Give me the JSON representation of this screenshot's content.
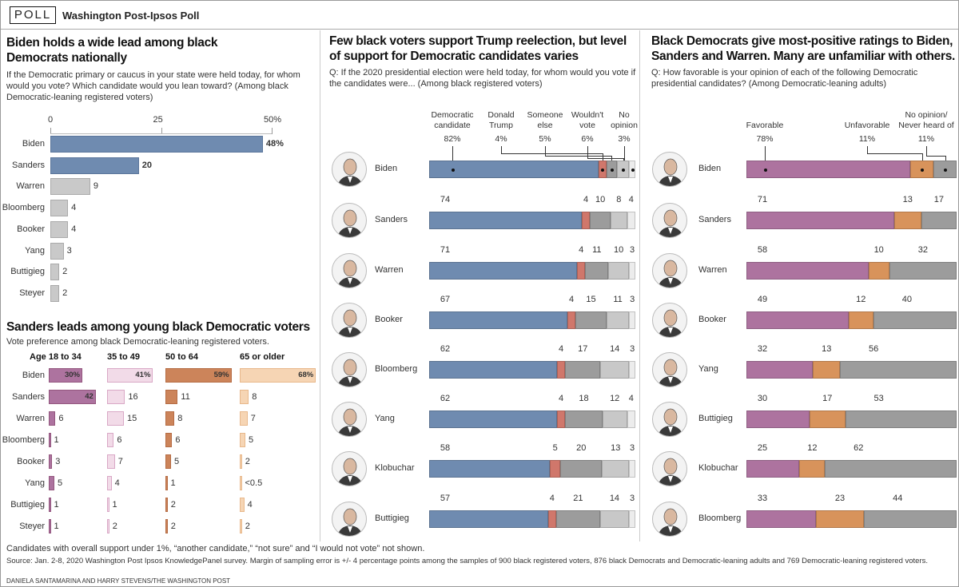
{
  "header": {
    "badge": "POLL",
    "title": "Washington Post-Ipsos Poll"
  },
  "panel1": {
    "title": "Biden holds a wide lead among black Democrats nationally",
    "question": "If the Democratic primary or caucus in your state were held today, for whom would you vote? Which candidate would you lean toward? (Among black Democratic-leaning registered voters)"
  },
  "panel2": {
    "title": "Sanders leads among young black Democratic voters",
    "subtitle": "Vote preference among black Democratic-leaning registered voters."
  },
  "panel3": {
    "title": "Few black voters support Trump reelection, but level of support for Democratic candidates varies",
    "question": "Q: If the 2020 presidential election were held today, for whom would you vote if the candidates were... (Among black registered voters)"
  },
  "panel4": {
    "title": "Black Democrats give most-positive ratings to Biden, Sanders and Warren. Many are unfamiliar with others.",
    "question": "Q: How favorable is your opinion of each of the following Democratic presidential candidates? (Among Democratic-leaning adults)"
  },
  "colors": {
    "blue": "#6f8bb0",
    "gray_bar": "#c9c9c9",
    "red": "#d0776b",
    "dark_gray": "#9c9c9c",
    "light_gray": "#c8c8c8",
    "lightest_gray": "#ececec",
    "purple": "#ad739f",
    "orange": "#d8935b",
    "age": [
      "#ad739f",
      "#f2dbe8",
      "#cc845a",
      "#f6d5b4"
    ],
    "age_border": [
      "#94577f",
      "#d9a8c6",
      "#b56c44",
      "#e8b88b"
    ]
  },
  "chart_data": [
    {
      "type": "bar",
      "orientation": "horizontal",
      "categories": [
        "Biden",
        "Sanders",
        "Warren",
        "Bloomberg",
        "Booker",
        "Yang",
        "Buttigieg",
        "Steyer"
      ],
      "values": [
        48,
        20,
        9,
        4,
        4,
        3,
        2,
        2
      ],
      "labels": [
        "48%",
        "20",
        "9",
        "4",
        "4",
        "3",
        "2",
        "2"
      ],
      "xlim": [
        0,
        50
      ],
      "ticks": [
        "0",
        "25",
        "50%"
      ],
      "tick_values": [
        0,
        25,
        50
      ],
      "grid": false
    },
    {
      "type": "bar",
      "orientation": "horizontal",
      "categories": [
        "Biden",
        "Sanders",
        "Warren",
        "Bloomberg",
        "Booker",
        "Yang",
        "Buttigieg",
        "Steyer"
      ],
      "series": [
        {
          "name": "Age 18 to 34",
          "values": [
            30,
            42,
            6,
            1,
            3,
            5,
            1,
            1
          ],
          "labels": [
            "30%",
            "42",
            "6",
            "1",
            "3",
            "5",
            "1",
            "1"
          ]
        },
        {
          "name": "35 to 49",
          "values": [
            41,
            16,
            15,
            6,
            7,
            4,
            1,
            2
          ],
          "labels": [
            "41%",
            "16",
            "15",
            "6",
            "7",
            "4",
            "1",
            "2"
          ]
        },
        {
          "name": "50 to 64",
          "values": [
            59,
            11,
            8,
            6,
            5,
            1,
            2,
            2
          ],
          "labels": [
            "59%",
            "11",
            "8",
            "6",
            "5",
            "1",
            "2",
            "2"
          ]
        },
        {
          "name": "65 or older",
          "values": [
            68,
            8,
            7,
            5,
            2,
            0.3,
            4,
            2
          ],
          "labels": [
            "68%",
            "8",
            "7",
            "5",
            "2",
            "<0.5",
            "4",
            "2"
          ]
        }
      ]
    },
    {
      "type": "bar",
      "stacked": true,
      "orientation": "horizontal",
      "categories": [
        "Biden",
        "Sanders",
        "Warren",
        "Booker",
        "Bloomberg",
        "Yang",
        "Klobuchar",
        "Buttigieg"
      ],
      "legend": [
        {
          "name": "Democratic candidate",
          "lines": [
            "Democratic",
            "candidate"
          ],
          "value": "82%"
        },
        {
          "name": "Donald Trump",
          "lines": [
            "Donald",
            "Trump"
          ],
          "value": "4%"
        },
        {
          "name": "Someone else",
          "lines": [
            "Someone",
            "else"
          ],
          "value": "5%"
        },
        {
          "name": "Wouldn't vote",
          "lines": [
            "Wouldn't",
            "vote"
          ],
          "value": "6%"
        },
        {
          "name": "No opinion",
          "lines": [
            "No",
            "opinion"
          ],
          "value": "3%"
        }
      ],
      "values": [
        [
          82,
          4,
          5,
          6,
          3
        ],
        [
          74,
          4,
          10,
          8,
          4
        ],
        [
          71,
          4,
          11,
          10,
          3
        ],
        [
          67,
          4,
          15,
          11,
          3
        ],
        [
          62,
          4,
          17,
          14,
          3
        ],
        [
          62,
          4,
          18,
          12,
          4
        ],
        [
          58,
          5,
          20,
          13,
          3
        ],
        [
          57,
          4,
          21,
          14,
          3
        ]
      ]
    },
    {
      "type": "bar",
      "stacked": true,
      "orientation": "horizontal",
      "categories": [
        "Biden",
        "Sanders",
        "Warren",
        "Booker",
        "Yang",
        "Buttigieg",
        "Klobuchar",
        "Bloomberg"
      ],
      "legend": [
        {
          "name": "Favorable",
          "lines": [
            "",
            "Favorable"
          ],
          "value": "78%"
        },
        {
          "name": "Unfavorable",
          "lines": [
            "",
            "Unfavorable"
          ],
          "value": "11%"
        },
        {
          "name": "No opinion/ Never heard of",
          "lines": [
            "No opinion/",
            "Never heard of"
          ],
          "value": "11%"
        }
      ],
      "values": [
        [
          78,
          11,
          11
        ],
        [
          71,
          13,
          17
        ],
        [
          58,
          10,
          32
        ],
        [
          49,
          12,
          40
        ],
        [
          32,
          13,
          56
        ],
        [
          30,
          17,
          53
        ],
        [
          25,
          12,
          62
        ],
        [
          33,
          23,
          44
        ]
      ]
    }
  ],
  "footer": {
    "note": "Candidates with overall support under 1%, “another candidate,” “not sure” and “I would not vote” not shown.",
    "source": "Source: Jan. 2-8, 2020 Washington Post Ipsos KnowledgePanel survey. Margin of sampling error is +/- 4 percentage points among the samples of 900 black registered voters, 876 black Democrats and Democratic-leaning adults and 769 Democratic-leaning registered voters.",
    "credit": "DANIELA SANTAMARINA AND HARRY STEVENS/THE WASHINGTON POST"
  }
}
